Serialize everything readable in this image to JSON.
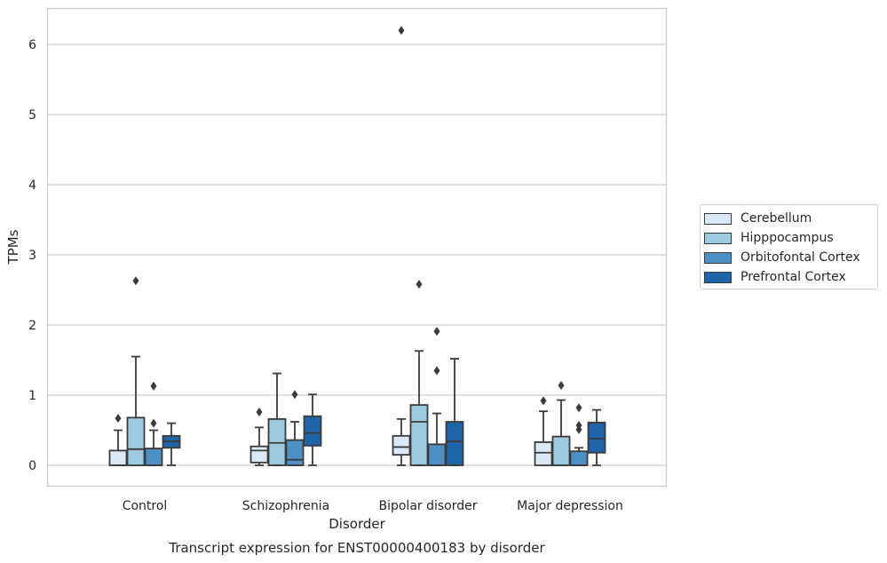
{
  "chart_data": {
    "type": "box",
    "title": "Transcript expression for ENST00000400183 by disorder",
    "xlabel": "Disorder",
    "ylabel": "TPMs",
    "ylim": [
      -0.3,
      6.5
    ],
    "yticks": [
      0,
      1,
      2,
      3,
      4,
      5,
      6
    ],
    "grid": "horizontal",
    "legend_position": "right",
    "categories": [
      "Control",
      "Schizophrenia",
      "Bipolar disorder",
      "Major depression"
    ],
    "series": [
      {
        "name": "Cerebellum",
        "color": "#dbe9f6",
        "boxes": [
          {
            "whislo": 0,
            "q1": 0,
            "med": 0,
            "q3": 0.21,
            "whishi": 0.5,
            "fliers": [
              0.67
            ]
          },
          {
            "whislo": 0,
            "q1": 0.04,
            "med": 0.21,
            "q3": 0.27,
            "whishi": 0.54,
            "fliers": [
              0.76
            ]
          },
          {
            "whislo": 0,
            "q1": 0.15,
            "med": 0.26,
            "q3": 0.42,
            "whishi": 0.66,
            "fliers": [
              6.2
            ]
          },
          {
            "whislo": 0,
            "q1": 0,
            "med": 0.18,
            "q3": 0.33,
            "whishi": 0.77,
            "fliers": [
              0.92
            ]
          }
        ]
      },
      {
        "name": "Hipppocampus",
        "color": "#9ecae1",
        "boxes": [
          {
            "whislo": 0,
            "q1": 0,
            "med": 0.23,
            "q3": 0.68,
            "whishi": 1.55,
            "fliers": [
              2.63
            ]
          },
          {
            "whislo": 0,
            "q1": 0,
            "med": 0.32,
            "q3": 0.66,
            "whishi": 1.31,
            "fliers": []
          },
          {
            "whislo": 0,
            "q1": 0,
            "med": 0.62,
            "q3": 0.86,
            "whishi": 1.63,
            "fliers": [
              2.58
            ]
          },
          {
            "whislo": 0,
            "q1": 0,
            "med": 0,
            "q3": 0.41,
            "whishi": 0.93,
            "fliers": [
              1.14
            ]
          }
        ]
      },
      {
        "name": "Orbitofontal Cortex",
        "color": "#4f90c4",
        "boxes": [
          {
            "whislo": 0,
            "q1": 0,
            "med": 0,
            "q3": 0.24,
            "whishi": 0.5,
            "fliers": [
              0.6,
              1.13
            ]
          },
          {
            "whislo": 0,
            "q1": 0,
            "med": 0.08,
            "q3": 0.36,
            "whishi": 0.62,
            "fliers": [
              1.01
            ]
          },
          {
            "whislo": 0,
            "q1": 0,
            "med": 0,
            "q3": 0.3,
            "whishi": 0.74,
            "fliers": [
              1.35,
              1.91
            ]
          },
          {
            "whislo": 0,
            "q1": 0,
            "med": 0,
            "q3": 0.2,
            "whishi": 0.25,
            "fliers": [
              0.51,
              0.57,
              0.82
            ]
          }
        ]
      },
      {
        "name": "Prefrontal Cortex",
        "color": "#1f64a8",
        "boxes": [
          {
            "whislo": 0,
            "q1": 0.25,
            "med": 0.34,
            "q3": 0.42,
            "whishi": 0.6,
            "fliers": []
          },
          {
            "whislo": 0,
            "q1": 0.28,
            "med": 0.46,
            "q3": 0.7,
            "whishi": 1.01,
            "fliers": []
          },
          {
            "whislo": 0,
            "q1": 0,
            "med": 0.34,
            "q3": 0.62,
            "whishi": 1.52,
            "fliers": []
          },
          {
            "whislo": 0,
            "q1": 0.18,
            "med": 0.38,
            "q3": 0.61,
            "whishi": 0.79,
            "fliers": []
          }
        ]
      }
    ]
  }
}
